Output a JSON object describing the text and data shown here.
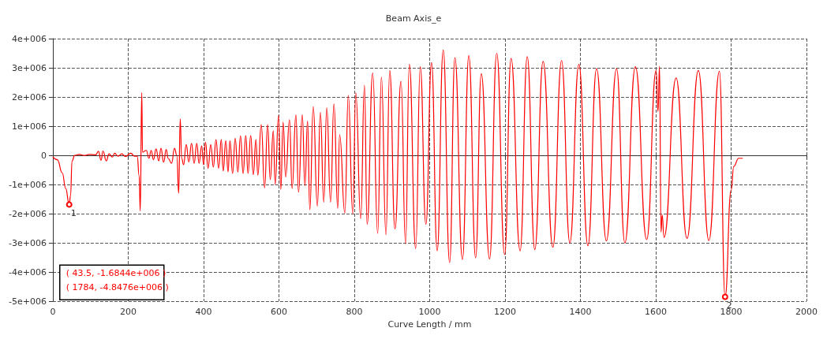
{
  "chart_data": {
    "type": "line",
    "title": "Beam Axis_e",
    "xlabel": "Curve Length / mm",
    "xlim": [
      0,
      2000
    ],
    "xticks": [
      0,
      200,
      400,
      600,
      800,
      1000,
      1200,
      1400,
      1600,
      1800,
      2000
    ],
    "ylim": [
      -5000000.0,
      4000000.0
    ],
    "yticks": [
      {
        "value": -5000000.0,
        "label": "-5e+006"
      },
      {
        "value": -4000000.0,
        "label": "-4e+006"
      },
      {
        "value": -3000000.0,
        "label": "-3e+006"
      },
      {
        "value": -2000000.0,
        "label": "-2e+006"
      },
      {
        "value": -1000000.0,
        "label": "-1e+006"
      },
      {
        "value": 0,
        "label": "0"
      },
      {
        "value": 1000000.0,
        "label": "1e+006"
      },
      {
        "value": 2000000.0,
        "label": "2e+006"
      },
      {
        "value": 3000000.0,
        "label": "3e+006"
      },
      {
        "value": 4000000.0,
        "label": "4e+006"
      }
    ],
    "grid": true,
    "line_style": "solid",
    "marker": "none",
    "series": [
      {
        "color": "#ff0000",
        "x": [
          0,
          12,
          25,
          34,
          43.5,
          47,
          51,
          58,
          70,
          84,
          97,
          114,
          121,
          128,
          133,
          142,
          149,
          158,
          164,
          173,
          183,
          193,
          207,
          217,
          224,
          229,
          232,
          236,
          238,
          248,
          255,
          261,
          267,
          274,
          281,
          287,
          294,
          301,
          306,
          315,
          323,
          329,
          334,
          338,
          342,
          347,
          354,
          361,
          368,
          375,
          382,
          388,
          395,
          400,
          405,
          412,
          419,
          426,
          433,
          440,
          447,
          452,
          459,
          465,
          470,
          477,
          484,
          491,
          498,
          505,
          512,
          518,
          525,
          532,
          539,
          544,
          553,
          562,
          570,
          577,
          585,
          590,
          599,
          605,
          611,
          618,
          628,
          635,
          645,
          652,
          662,
          669,
          676,
          682,
          691,
          702,
          710,
          719,
          727,
          737,
          746,
          756,
          761,
          775,
          784,
          796,
          804,
          817,
          827,
          834,
          849,
          862,
          872,
          884,
          894,
          908,
          924,
          936,
          946,
          963,
          975,
          990,
          1005,
          1020,
          1036,
          1053,
          1067,
          1087,
          1104,
          1122,
          1137,
          1159,
          1178,
          1199,
          1216,
          1240,
          1259,
          1279,
          1301,
          1327,
          1350,
          1372,
          1396,
          1420,
          1443,
          1469,
          1496,
          1518,
          1546,
          1576,
          1601,
          1606,
          1610,
          1614,
          1617,
          1622,
          1654,
          1683,
          1713,
          1741,
          1769,
          1784,
          1800,
          1807,
          1820,
          1831
        ],
        "values": [
          -50000.0,
          -150000.0,
          -600000.0,
          -1130000.0,
          -1684400.0,
          -1380000.0,
          -190000.0,
          0,
          30000.0,
          0,
          30000.0,
          20000.0,
          140000.0,
          -170000.0,
          150000.0,
          -190000.0,
          50000.0,
          -60000.0,
          70000.0,
          -30000.0,
          50000.0,
          -40000.0,
          70000.0,
          -30000.0,
          -30000.0,
          -700000.0,
          -1910000.0,
          2150000.0,
          110000.0,
          170000.0,
          -100000.0,
          170000.0,
          -150000.0,
          220000.0,
          -190000.0,
          240000.0,
          -230000.0,
          200000.0,
          -100000.0,
          -270000.0,
          240000.0,
          0,
          -1300000.0,
          1250000.0,
          -100000.0,
          -320000.0,
          370000.0,
          -230000.0,
          410000.0,
          -270000.0,
          410000.0,
          -270000.0,
          320000.0,
          -320000.0,
          450000.0,
          -440000.0,
          370000.0,
          -400000.0,
          540000.0,
          -440000.0,
          540000.0,
          -530000.0,
          500000.0,
          -570000.0,
          500000.0,
          -620000.0,
          580000.0,
          -570000.0,
          670000.0,
          -620000.0,
          680000.0,
          -620000.0,
          680000.0,
          -660000.0,
          540000.0,
          -680000.0,
          1050000.0,
          -1110000.0,
          1050000.0,
          -830000.0,
          840000.0,
          -1000000.0,
          1370000.0,
          -1170000.0,
          1140000.0,
          -740000.0,
          1220000.0,
          -1130000.0,
          1390000.0,
          -1260000.0,
          1390000.0,
          -1040000.0,
          1180000.0,
          -1870000.0,
          1670000.0,
          -1740000.0,
          1480000.0,
          -1610000.0,
          1630000.0,
          -1610000.0,
          1760000.0,
          -1820000.0,
          710000.0,
          -1980000.0,
          2050000.0,
          -2000000.0,
          2140000.0,
          -2170000.0,
          2400000.0,
          -2360000.0,
          2820000.0,
          -2680000.0,
          2680000.0,
          -2720000.0,
          2910000.0,
          -2520000.0,
          2540000.0,
          -3040000.0,
          3120000.0,
          -3190000.0,
          3040000.0,
          -2360000.0,
          3180000.0,
          -3270000.0,
          3610000.0,
          -3680000.0,
          3350000.0,
          -3570000.0,
          3420000.0,
          -3510000.0,
          2800000.0,
          -3550000.0,
          3500000.0,
          -3400000.0,
          3320000.0,
          -3270000.0,
          3380000.0,
          -3230000.0,
          3220000.0,
          -3150000.0,
          3250000.0,
          -3000000.0,
          3120000.0,
          -3100000.0,
          2970000.0,
          -2930000.0,
          2970000.0,
          -3000000.0,
          3040000.0,
          -2890000.0,
          2910000.0,
          1500000.0,
          3050000.0,
          -2630000.0,
          -2040000.0,
          -2810000.0,
          2650000.0,
          -2850000.0,
          2910000.0,
          -2920000.0,
          2880000.0,
          -4847600.0,
          -1200000.0,
          -380000.0,
          -100000.0,
          -100000.0
        ]
      }
    ],
    "annotations": [
      {
        "text": "1",
        "x": 43.5,
        "y": -1684400.0
      },
      {
        "text": "2",
        "x": 1784,
        "y": -4847600.0
      },
      "( 43.5, -1.6844e+006 )",
      "( 1784, -4.8476e+006 )"
    ]
  }
}
